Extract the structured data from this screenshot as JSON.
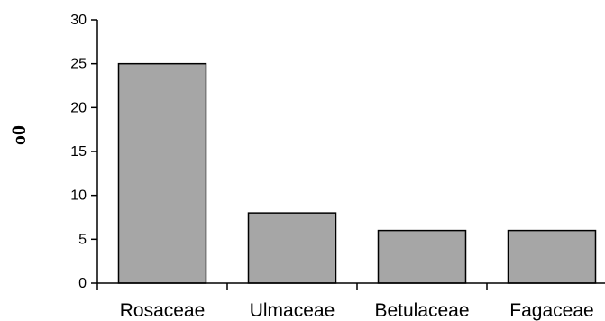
{
  "chart_data": {
    "type": "bar",
    "categories": [
      "Rosaceae",
      "Ulmaceae",
      "Betulaceae",
      "Fagaceae"
    ],
    "values": [
      25,
      8,
      6,
      6
    ],
    "ylabel": "o0",
    "ylim": [
      0,
      30
    ],
    "yticks": [
      "0",
      "5",
      "10",
      "15",
      "20",
      "25",
      "30"
    ],
    "grid": false,
    "legend": "none",
    "bar_color": "#a6a6a6"
  }
}
